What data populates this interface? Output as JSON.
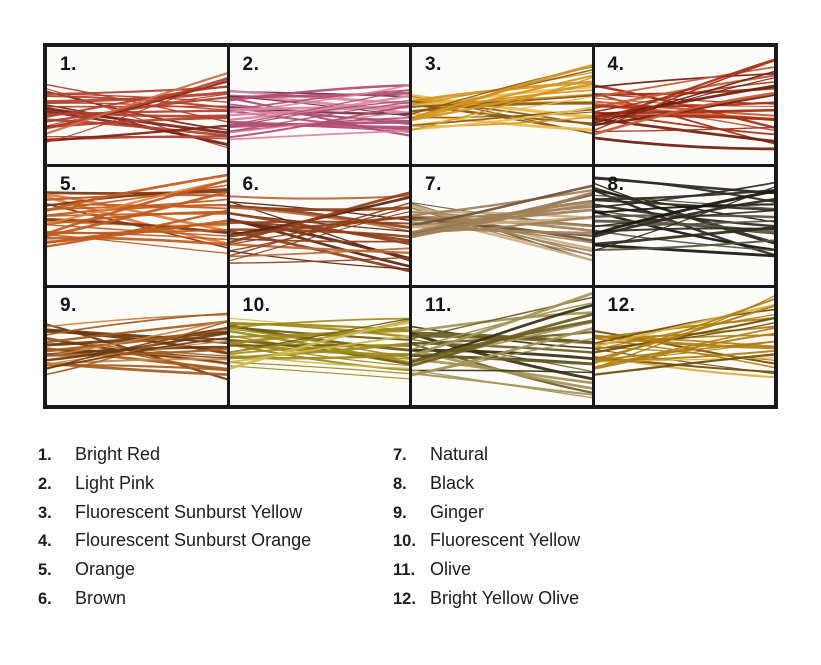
{
  "page": {
    "background": "#ffffff",
    "grid_line_color": "#1a1a1a",
    "text_color": "#1d1d1b"
  },
  "swatch_chart": {
    "rows": 3,
    "columns": 4,
    "cells": [
      {
        "number": "1.",
        "name": "Bright Red",
        "colors": [
          "#7e2417",
          "#b2412c",
          "#d06a45"
        ]
      },
      {
        "number": "2.",
        "name": "Light Pink",
        "colors": [
          "#6e2c44",
          "#b04c72",
          "#d887a0"
        ]
      },
      {
        "number": "3.",
        "name": "Fluorescent Sunburst Yellow",
        "colors": [
          "#8a5a10",
          "#d3941f",
          "#ecbb52"
        ]
      },
      {
        "number": "4.",
        "name": "Flourescent Sunburst Orange",
        "colors": [
          "#6e1d0e",
          "#a52d15",
          "#c85a32"
        ]
      },
      {
        "number": "5.",
        "name": "Orange",
        "colors": [
          "#7e3410",
          "#bf5a1d",
          "#dd8040"
        ]
      },
      {
        "number": "6.",
        "name": "Brown",
        "colors": [
          "#5c2410",
          "#8e4019",
          "#b86a38"
        ]
      },
      {
        "number": "7.",
        "name": "Natural",
        "colors": [
          "#6e5338",
          "#a08157",
          "#c9ad85"
        ]
      },
      {
        "number": "8.",
        "name": "Black",
        "colors": [
          "#17150f",
          "#2e2a1f",
          "#5a5342"
        ]
      },
      {
        "number": "9.",
        "name": "Ginger",
        "colors": [
          "#6e3a10",
          "#a55d1f",
          "#c98440"
        ]
      },
      {
        "number": "10.",
        "name": "Fluorescent Yellow",
        "colors": [
          "#6a5a10",
          "#a08a1c",
          "#cdb84a"
        ]
      },
      {
        "number": "11.",
        "name": "Olive",
        "colors": [
          "#37300f",
          "#6b5c20",
          "#a39356"
        ]
      },
      {
        "number": "12.",
        "name": "Bright Yellow Olive",
        "colors": [
          "#6e4c08",
          "#b07f10",
          "#ddad3e"
        ]
      }
    ]
  },
  "legend": {
    "columns": [
      {
        "items": [
          {
            "number": "1.",
            "label": "Bright Red"
          },
          {
            "number": "2.",
            "label": "Light Pink"
          },
          {
            "number": "3.",
            "label": "Fluorescent Sunburst Yellow"
          },
          {
            "number": "4.",
            "label": "Flourescent Sunburst Orange"
          },
          {
            "number": "5.",
            "label": "Orange"
          },
          {
            "number": "6.",
            "label": "Brown"
          }
        ]
      },
      {
        "items": [
          {
            "number": "7.",
            "label": "Natural"
          },
          {
            "number": "8.",
            "label": "Black"
          },
          {
            "number": "9.",
            "label": "Ginger"
          },
          {
            "number": "10.",
            "label": "Fluorescent Yellow"
          },
          {
            "number": "11.",
            "label": "Olive"
          },
          {
            "number": "12.",
            "label": "Bright Yellow Olive"
          }
        ]
      }
    ]
  }
}
